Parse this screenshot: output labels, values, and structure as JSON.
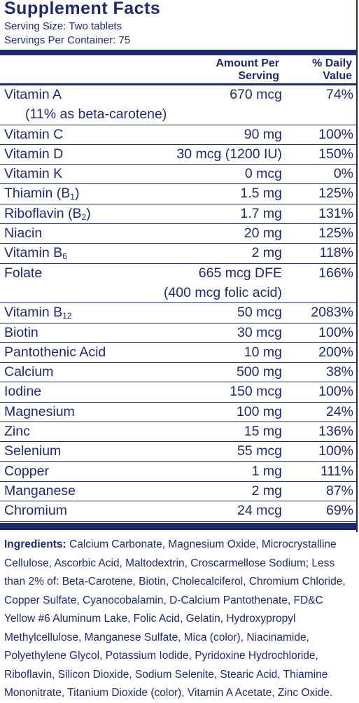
{
  "panel": {
    "title": "Supplement Facts",
    "serving_size": "Serving Size: Two tablets",
    "servings_per_container": "Servings Per Container: 75",
    "header_amount": "Amount Per Serving",
    "header_amount_line1": "Amount Per",
    "header_amount_line2": "Serving",
    "header_dv_line1": "% Daily",
    "header_dv_line2": "Value",
    "text_color": "#1f2a6b"
  },
  "nutrients": [
    {
      "name": "Vitamin A",
      "sub": "",
      "amount": "670 mcg",
      "dv": "74%",
      "note": "(11% as beta-carotene)"
    },
    {
      "name": "Vitamin C",
      "sub": "",
      "amount": "90 mg",
      "dv": "100%",
      "note": ""
    },
    {
      "name": "Vitamin D",
      "sub": "",
      "amount": "30 mcg (1200 IU)",
      "dv": "150%",
      "note": ""
    },
    {
      "name": "Vitamin K",
      "sub": "",
      "amount": "0 mcg",
      "dv": "0%",
      "note": ""
    },
    {
      "name": "Thiamin (B",
      "sub": "1",
      "suffix": ")",
      "amount": "1.5 mg",
      "dv": "125%",
      "note": ""
    },
    {
      "name": "Riboflavin (B",
      "sub": "2",
      "suffix": ")",
      "amount": "1.7 mg",
      "dv": "131%",
      "note": ""
    },
    {
      "name": "Niacin",
      "sub": "",
      "amount": "20 mg",
      "dv": "125%",
      "note": ""
    },
    {
      "name": "Vitamin B",
      "sub": "6",
      "amount": "2 mg",
      "dv": "118%",
      "note": ""
    },
    {
      "name": "Folate",
      "sub": "",
      "amount": "665 mcg DFE",
      "dv": "166%",
      "note": "(400 mcg folic acid)"
    },
    {
      "name": "Vitamin B",
      "sub": "12",
      "amount": "50 mcg",
      "dv": "2083%",
      "note": ""
    },
    {
      "name": "Biotin",
      "sub": "",
      "amount": "30 mcg",
      "dv": "100%",
      "note": ""
    },
    {
      "name": "Pantothenic Acid",
      "sub": "",
      "amount": "10 mg",
      "dv": "200%",
      "note": ""
    },
    {
      "name": "Calcium",
      "sub": "",
      "amount": "500 mg",
      "dv": "38%",
      "note": ""
    },
    {
      "name": "Iodine",
      "sub": "",
      "amount": "150 mcg",
      "dv": "100%",
      "note": ""
    },
    {
      "name": "Magnesium",
      "sub": "",
      "amount": "100 mg",
      "dv": "24%",
      "note": ""
    },
    {
      "name": "Zinc",
      "sub": "",
      "amount": "15 mg",
      "dv": "136%",
      "note": ""
    },
    {
      "name": "Selenium",
      "sub": "",
      "amount": "55 mcg",
      "dv": "100%",
      "note": ""
    },
    {
      "name": "Copper",
      "sub": "",
      "amount": "1 mg",
      "dv": "111%",
      "note": ""
    },
    {
      "name": "Manganese",
      "sub": "",
      "amount": "2 mg",
      "dv": "87%",
      "note": ""
    },
    {
      "name": "Chromium",
      "sub": "",
      "amount": "24 mcg",
      "dv": "69%",
      "note": ""
    }
  ],
  "ingredients": {
    "label": "Ingredients:",
    "text": "Calcium Carbonate, Magnesium Oxide, Microcrystalline Cellulose, Ascorbic Acid, Maltodextrin, Croscarmellose Sodium; Less than 2% of: Beta-Carotene, Biotin, Cholecalciferol, Chromium Chloride, Copper Sulfate, Cyanocobalamin, D-Calcium Pantothenate, FD&C Yellow #6 Aluminum Lake, Folic Acid, Gelatin, Hydroxypropyl Methylcellulose, Manganese Sulfate, Mica (color), Niacinamide, Polyethylene Glycol, Potassium Iodide, Pyridoxine Hydrochloride, Riboflavin, Silicon Dioxide, Sodium Selenite, Stearic Acid, Thiamine Mononitrate, Titanium Dioxide (color), Vitamin A Acetate, Zinc Oxide."
  }
}
